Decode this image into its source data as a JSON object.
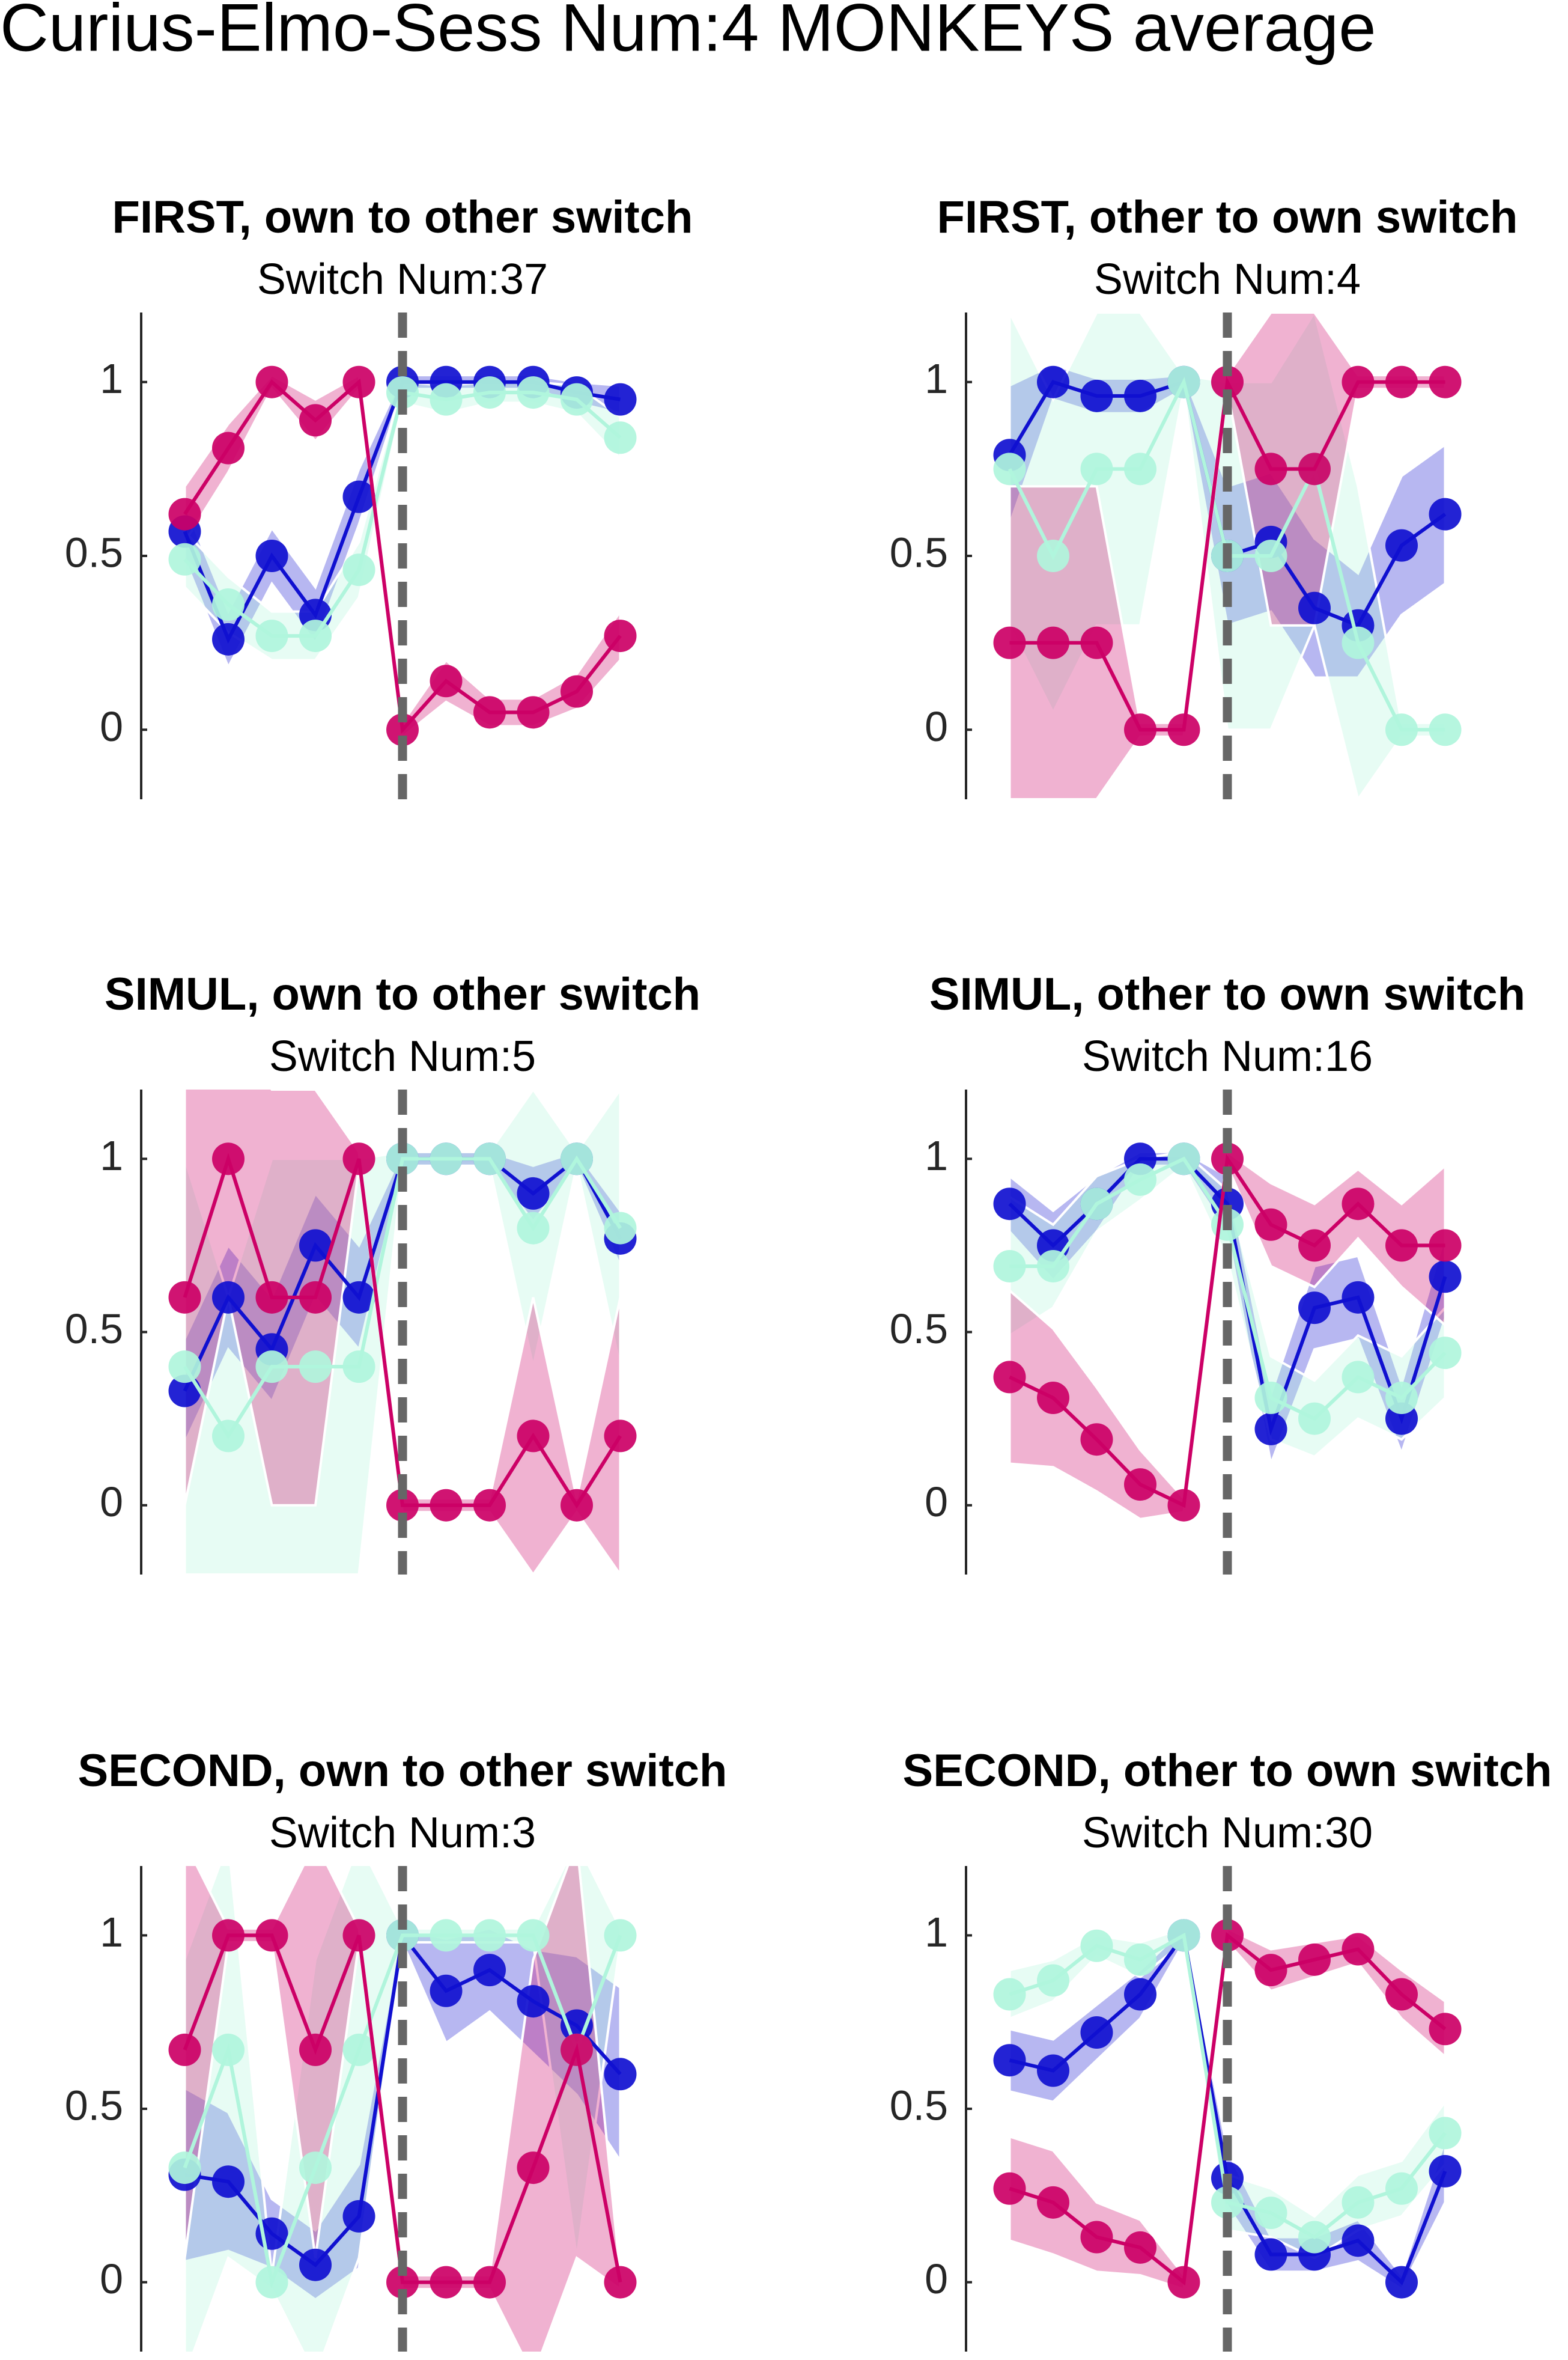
{
  "title": "Curius-Elmo-Sess Num:4 MONKEYS average",
  "chart_data": [
    {
      "type": "line",
      "title": "FIRST, own to other switch",
      "subtitle": "Switch Num:37",
      "x": [
        -5,
        -4,
        -3,
        -2,
        -1,
        0,
        1,
        2,
        3,
        4,
        5
      ],
      "xlim": [
        -6,
        6
      ],
      "ylim": [
        -0.2,
        1.2
      ],
      "yticks": [
        0,
        0.5,
        1
      ],
      "vline": 0,
      "series": [
        {
          "color": "#1010d0",
          "values": [
            0.57,
            0.26,
            0.5,
            0.33,
            0.67,
            1,
            1,
            1,
            1,
            0.97,
            0.95
          ],
          "errors": [
            0.08,
            0.08,
            0.08,
            0.08,
            0.08,
            0.02,
            0.02,
            0.02,
            0.02,
            0.03,
            0.04
          ]
        },
        {
          "color": "#b0f5dc",
          "values": [
            0.49,
            0.36,
            0.27,
            0.27,
            0.46,
            0.97,
            0.95,
            0.97,
            0.97,
            0.95,
            0.84
          ],
          "errors": [
            0.08,
            0.08,
            0.07,
            0.07,
            0.08,
            0.03,
            0.04,
            0.03,
            0.03,
            0.04,
            0.06
          ]
        },
        {
          "color": "#cc0066",
          "values": [
            0.62,
            0.81,
            1,
            0.89,
            1,
            0,
            0.14,
            0.05,
            0.05,
            0.11,
            0.27
          ],
          "errors": [
            0.08,
            0.07,
            0.02,
            0.06,
            0.02,
            0.02,
            0.06,
            0.04,
            0.04,
            0.05,
            0.07
          ]
        }
      ]
    },
    {
      "type": "line",
      "title": "FIRST, other to own switch",
      "subtitle": "Switch Num:4",
      "x": [
        -5,
        -4,
        -3,
        -2,
        -1,
        0,
        1,
        2,
        3,
        4,
        5
      ],
      "xlim": [
        -6,
        6
      ],
      "ylim": [
        -0.2,
        1.2
      ],
      "yticks": [
        0,
        0.5,
        1
      ],
      "vline": 0,
      "series": [
        {
          "color": "#1010d0",
          "values": [
            0.79,
            1,
            0.96,
            0.96,
            1,
            0.5,
            0.54,
            0.35,
            0.3,
            0.53,
            0.62
          ],
          "errors": [
            0.2,
            0.05,
            0.05,
            0.05,
            0.02,
            0.2,
            0.2,
            0.2,
            0.15,
            0.2,
            0.2
          ]
        },
        {
          "color": "#b0f5dc",
          "values": [
            0.75,
            0.5,
            0.75,
            0.75,
            1,
            0.5,
            0.5,
            0.75,
            0.25,
            0,
            0
          ],
          "errors": [
            0.45,
            0.45,
            0.45,
            0.45,
            0.02,
            0.5,
            0.5,
            0.45,
            0.45,
            0.02,
            0.02
          ]
        },
        {
          "color": "#cc0066",
          "values": [
            0.25,
            0.25,
            0.25,
            0,
            0,
            1,
            0.75,
            0.75,
            1,
            1,
            1
          ],
          "errors": [
            0.45,
            0.45,
            0.45,
            0.02,
            0.02,
            0.02,
            0.45,
            0.45,
            0.02,
            0.02,
            0.02
          ]
        }
      ]
    },
    {
      "type": "line",
      "title": "SIMUL, own to other switch",
      "subtitle": "Switch Num:5",
      "x": [
        -5,
        -4,
        -3,
        -2,
        -1,
        0,
        1,
        2,
        3,
        4,
        5
      ],
      "xlim": [
        -6,
        6
      ],
      "ylim": [
        -0.2,
        1.2
      ],
      "yticks": [
        0,
        0.5,
        1
      ],
      "vline": 0,
      "series": [
        {
          "color": "#1010d0",
          "values": [
            0.33,
            0.6,
            0.45,
            0.75,
            0.6,
            1,
            1,
            1,
            0.9,
            1,
            0.77
          ],
          "errors": [
            0.15,
            0.15,
            0.15,
            0.15,
            0.15,
            0.02,
            0.02,
            0.02,
            0.08,
            0.02,
            0.08
          ]
        },
        {
          "color": "#b0f5dc",
          "values": [
            0.4,
            0.2,
            0.4,
            0.4,
            0.4,
            1,
            1,
            1,
            0.8,
            1,
            0.8
          ],
          "errors": [
            0.6,
            0.4,
            0.6,
            0.6,
            0.6,
            0.02,
            0.02,
            0.02,
            0.4,
            0.02,
            0.4
          ]
        },
        {
          "color": "#cc0066",
          "values": [
            0.6,
            1,
            0.6,
            0.6,
            1,
            0,
            0,
            0,
            0.2,
            0,
            0.2
          ],
          "errors": [
            0.6,
            0.4,
            0.6,
            0.6,
            0.02,
            0.02,
            0.02,
            0.02,
            0.4,
            0.02,
            0.4
          ]
        }
      ]
    },
    {
      "type": "line",
      "title": "SIMUL, other to own switch",
      "subtitle": "Switch Num:16",
      "x": [
        -5,
        -4,
        -3,
        -2,
        -1,
        0,
        1,
        2,
        3,
        4,
        5
      ],
      "xlim": [
        -6,
        6
      ],
      "ylim": [
        -0.2,
        1.2
      ],
      "yticks": [
        0,
        0.5,
        1
      ],
      "vline": 0,
      "series": [
        {
          "color": "#1010d0",
          "values": [
            0.87,
            0.75,
            0.87,
            1,
            1,
            0.87,
            0.22,
            0.57,
            0.6,
            0.25,
            0.66
          ],
          "errors": [
            0.08,
            0.1,
            0.08,
            0.02,
            0.02,
            0.08,
            0.1,
            0.12,
            0.12,
            0.1,
            0.12
          ]
        },
        {
          "color": "#b0f5dc",
          "values": [
            0.69,
            0.69,
            0.87,
            0.94,
            1,
            0.81,
            0.31,
            0.25,
            0.37,
            0.31,
            0.44
          ],
          "errors": [
            0.2,
            0.12,
            0.08,
            0.06,
            0.02,
            0.1,
            0.12,
            0.11,
            0.12,
            0.12,
            0.13
          ]
        },
        {
          "color": "#cc0066",
          "values": [
            0.37,
            0.31,
            0.19,
            0.06,
            0,
            1,
            0.81,
            0.75,
            0.87,
            0.75,
            0.75
          ],
          "errors": [
            0.25,
            0.2,
            0.15,
            0.1,
            0.02,
            0.02,
            0.12,
            0.12,
            0.1,
            0.12,
            0.23
          ]
        }
      ]
    },
    {
      "type": "line",
      "title": "SECOND, own to other switch",
      "subtitle": "Switch Num:3",
      "x": [
        -5,
        -4,
        -3,
        -2,
        -1,
        0,
        1,
        2,
        3,
        4,
        5
      ],
      "xlim": [
        -6,
        6
      ],
      "ylim": [
        -0.2,
        1.2
      ],
      "yticks": [
        0,
        0.5,
        1
      ],
      "vline": 0,
      "series": [
        {
          "color": "#1010d0",
          "values": [
            0.31,
            0.29,
            0.14,
            0.05,
            0.19,
            1,
            0.84,
            0.9,
            0.81,
            0.74,
            0.6
          ],
          "errors": [
            0.25,
            0.2,
            0.1,
            0.1,
            0.15,
            0.02,
            0.15,
            0.12,
            0.15,
            0.2,
            0.25
          ]
        },
        {
          "color": "#b0f5dc",
          "values": [
            0.33,
            0.67,
            0,
            0.33,
            0.67,
            1,
            1,
            1,
            1,
            0.67,
            1
          ],
          "errors": [
            0.6,
            0.6,
            0.02,
            0.6,
            0.6,
            0.02,
            0.02,
            0.02,
            0.02,
            0.6,
            0.02
          ]
        },
        {
          "color": "#cc0066",
          "values": [
            0.67,
            1,
            1,
            0.67,
            1,
            0,
            0,
            0,
            0.33,
            0.67,
            0
          ],
          "errors": [
            0.6,
            0.02,
            0.02,
            0.6,
            0.02,
            0.02,
            0.02,
            0.02,
            0.6,
            0.6,
            0.02
          ]
        }
      ]
    },
    {
      "type": "line",
      "title": "SECOND, other to own switch",
      "subtitle": "Switch Num:30",
      "x": [
        -5,
        -4,
        -3,
        -2,
        -1,
        0,
        1,
        2,
        3,
        4,
        5
      ],
      "xlim": [
        -6,
        6
      ],
      "ylim": [
        -0.2,
        1.2
      ],
      "yticks": [
        0,
        0.5,
        1
      ],
      "vline": 0,
      "series": [
        {
          "color": "#1010d0",
          "values": [
            0.64,
            0.61,
            0.72,
            0.83,
            1,
            0.3,
            0.08,
            0.08,
            0.12,
            0,
            0.32
          ],
          "errors": [
            0.09,
            0.09,
            0.08,
            0.07,
            0.02,
            0.08,
            0.05,
            0.05,
            0.06,
            0.02,
            0.09
          ]
        },
        {
          "color": "#b0f5dc",
          "values": [
            0.83,
            0.87,
            0.97,
            0.93,
            1,
            0.23,
            0.2,
            0.13,
            0.23,
            0.27,
            0.43
          ],
          "errors": [
            0.07,
            0.06,
            0.03,
            0.05,
            0.02,
            0.08,
            0.07,
            0.06,
            0.08,
            0.08,
            0.09
          ]
        },
        {
          "color": "#cc0066",
          "values": [
            0.27,
            0.23,
            0.13,
            0.1,
            0,
            1,
            0.9,
            0.93,
            0.96,
            0.83,
            0.73
          ],
          "errors": [
            0.15,
            0.15,
            0.1,
            0.08,
            0.02,
            0.02,
            0.06,
            0.05,
            0.04,
            0.07,
            0.08
          ]
        }
      ]
    }
  ]
}
